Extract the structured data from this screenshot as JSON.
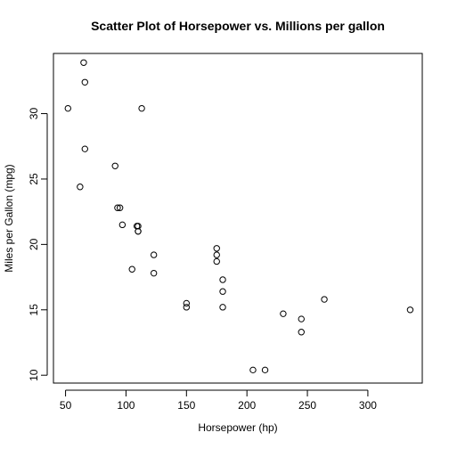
{
  "chart_data": {
    "type": "scatter",
    "title": "Scatter Plot of Horsepower vs. Millions per gallon",
    "xlabel": "Horsepower (hp)",
    "ylabel": "Miles per Gallon (mpg)",
    "xlim": [
      40,
      345
    ],
    "ylim": [
      9.4,
      34.6
    ],
    "xticks": [
      50,
      100,
      150,
      200,
      250,
      300
    ],
    "yticks": [
      10,
      15,
      20,
      25,
      30
    ],
    "grid": false,
    "marker": "open-circle",
    "color": "#000000",
    "series": [
      {
        "x": [
          110,
          110,
          93,
          110,
          175,
          105,
          245,
          62,
          95,
          123,
          123,
          180,
          180,
          180,
          205,
          215,
          230,
          66,
          52,
          65,
          97,
          150,
          150,
          245,
          175,
          66,
          91,
          113,
          264,
          175,
          335,
          109
        ],
        "y": [
          21.0,
          21.0,
          22.8,
          21.4,
          18.7,
          18.1,
          14.3,
          24.4,
          22.8,
          19.2,
          17.8,
          16.4,
          17.3,
          15.2,
          10.4,
          10.4,
          14.7,
          32.4,
          30.4,
          33.9,
          21.5,
          15.5,
          15.2,
          13.3,
          19.2,
          27.3,
          26.0,
          30.4,
          15.8,
          19.7,
          15.0,
          21.4
        ]
      }
    ]
  }
}
